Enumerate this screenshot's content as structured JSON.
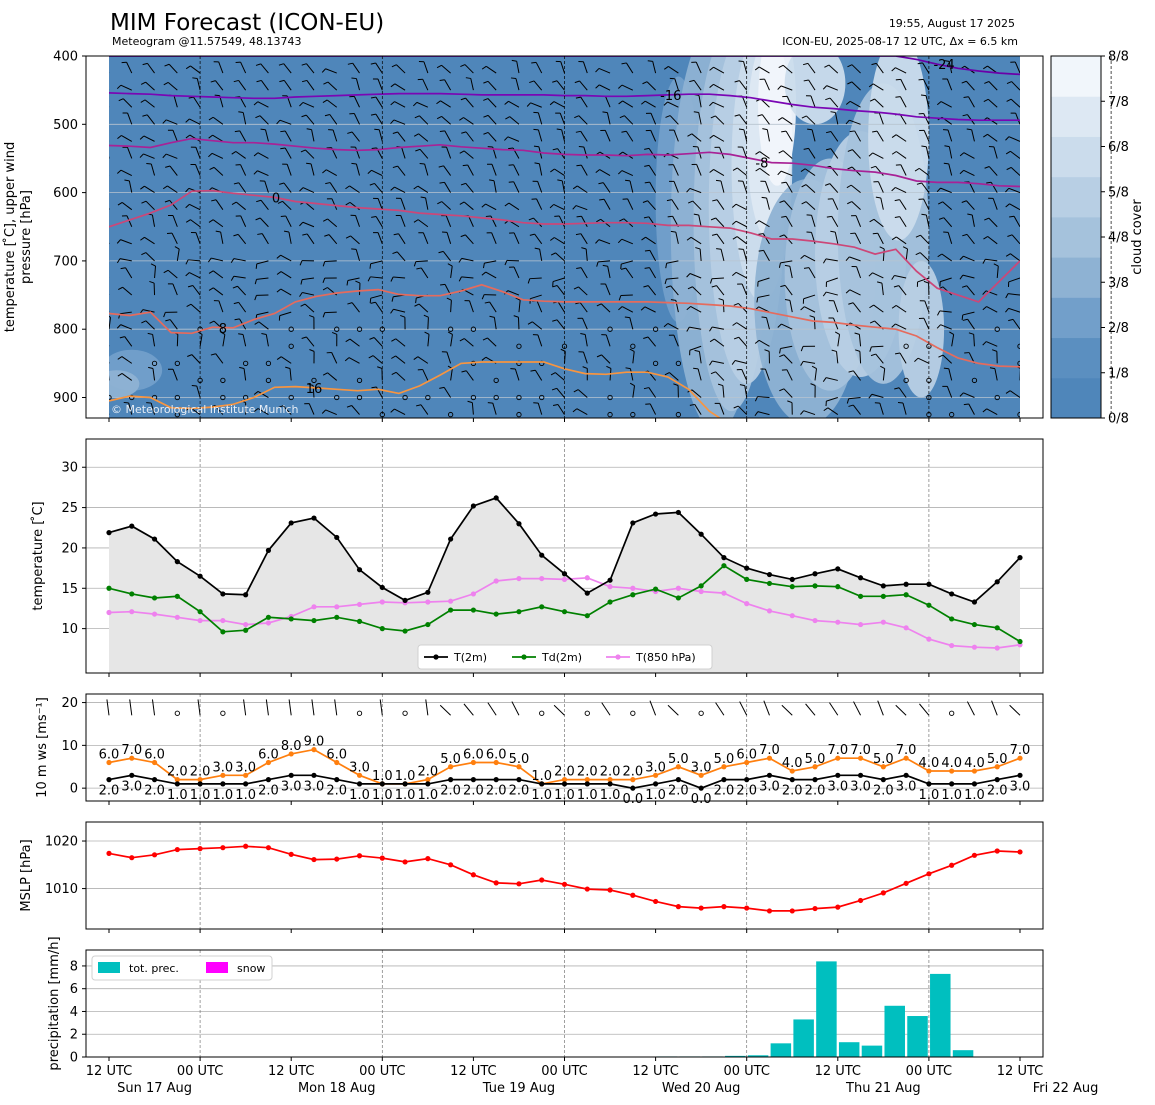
{
  "header": {
    "title": "MIM Forecast (ICON-EU)",
    "subtitle": "Meteogram @11.57549, 48.13743",
    "right_line1": "19:55, August 17 2025",
    "right_line2": "ICON-EU, 2025-08-17 12 UTC, Δx = 6.5 km",
    "copyright": "© Meteorological Institute Munich"
  },
  "time_axis": {
    "tick_labels": [
      "12 UTC",
      "00 UTC",
      "12 UTC",
      "00 UTC",
      "12 UTC",
      "00 UTC",
      "12 UTC",
      "00 UTC",
      "12 UTC",
      "00 UTC",
      "12 UTC"
    ],
    "day_labels": [
      "Sun 17 Aug",
      "Mon 18 Aug",
      "Tue 19 Aug",
      "Wed 20 Aug",
      "Thu 21 Aug",
      "Fri 22 Aug"
    ],
    "day_label_positions_h": [
      0,
      24,
      48,
      72,
      96,
      120
    ],
    "step_hours": 6,
    "hours_range": [
      0,
      120
    ]
  },
  "chart_data": [
    {
      "type": "heatmap",
      "name_panel": "upper_air",
      "ylabel": "temperature [$^\\circ$C], upper wind\npressure [hPa]",
      "ylabel_line1": "temperature [ ̊C], upper wind",
      "ylabel_line2": "pressure [hPa]",
      "ylim": [
        930,
        400
      ],
      "yticks": [
        400,
        500,
        600,
        700,
        800,
        900
      ],
      "colorbar_label": "cloud cover",
      "colorbar_ticks": [
        "0/8",
        "1/8",
        "2/8",
        "3/8",
        "4/8",
        "5/8",
        "6/8",
        "7/8",
        "8/8"
      ],
      "colorbar_colors": [
        "#4f86ba",
        "#5b8fc0",
        "#729fca",
        "#8eb2d3",
        "#a5c2dc",
        "#b8cfe4",
        "#cbdcec",
        "#dde8f3",
        "#f1f6fb"
      ],
      "isotherms": [
        {
          "label": "-24",
          "color": "#6a00a8",
          "pressures": [
            400,
            400,
            400,
            400,
            400,
            400,
            400,
            400,
            400,
            400,
            400,
            400,
            400,
            400,
            400,
            400,
            400,
            400,
            400,
            400,
            400,
            400,
            400,
            400,
            400,
            400,
            400,
            400,
            400,
            400,
            400,
            400,
            400,
            400,
            400,
            400,
            400,
            400,
            400,
            405,
            412,
            418,
            422,
            425,
            427
          ]
        },
        {
          "label": "-16",
          "color": "#7a06b4",
          "pressures": [
            454,
            455,
            456,
            458,
            459,
            460,
            461,
            462,
            462,
            460,
            459,
            458,
            457,
            456,
            455,
            455,
            455,
            456,
            457,
            457,
            457,
            457,
            458,
            458,
            459,
            459,
            458,
            457,
            456,
            456,
            458,
            461,
            466,
            471,
            475,
            477,
            480,
            482,
            485,
            489,
            491,
            493,
            494,
            494,
            494
          ]
        },
        {
          "label": "-8",
          "color": "#a82296",
          "pressures": [
            531,
            532,
            534,
            527,
            521,
            524,
            527,
            527,
            529,
            532,
            535,
            537,
            538,
            537,
            534,
            532,
            530,
            533,
            535,
            537,
            538,
            542,
            544,
            545,
            545,
            546,
            544,
            545,
            543,
            541,
            544,
            550,
            556,
            557,
            560,
            565,
            568,
            570,
            575,
            583,
            585,
            585,
            587,
            590,
            591
          ]
        },
        {
          "label": "0",
          "color": "#cc4778",
          "pressures": [
            650,
            640,
            630,
            618,
            598,
            597,
            601,
            604,
            607,
            613,
            616,
            619,
            622,
            624,
            626,
            630,
            632,
            634,
            637,
            640,
            644,
            646,
            646,
            645,
            644,
            644,
            645,
            648,
            648,
            650,
            652,
            659,
            668,
            668,
            671,
            675,
            680,
            690,
            683,
            715,
            740,
            750,
            760,
            730,
            700
          ]
        },
        {
          "label": "8",
          "color": "#e56b5d",
          "pressures": [
            777,
            780,
            775,
            805,
            806,
            797,
            798,
            786,
            777,
            760,
            752,
            747,
            744,
            742,
            749,
            751,
            751,
            744,
            735,
            745,
            757,
            759,
            760,
            760,
            760,
            760,
            760,
            761,
            762,
            764,
            766,
            770,
            776,
            782,
            788,
            790,
            794,
            797,
            800,
            810,
            827,
            842,
            850,
            854,
            855
          ]
        },
        {
          "label": "16",
          "color": "#f89540",
          "pressures": [
            905,
            898,
            900,
            915,
            916,
            914,
            910,
            900,
            885,
            884,
            886,
            888,
            890,
            888,
            894,
            883,
            867,
            850,
            848,
            848,
            848,
            848,
            858,
            865,
            866,
            863,
            863,
            870,
            888,
            920,
            940,
            950,
            955,
            960,
            970,
            980,
            990,
            1000,
            1000,
            1000,
            1000,
            1000,
            1000,
            1000,
            1000
          ]
        }
      ]
    },
    {
      "type": "line",
      "name_panel": "surface_temperature",
      "ylabel": "temperature [ ̊C]",
      "ylim": [
        4.5,
        33.5
      ],
      "yticks": [
        10,
        15,
        20,
        25,
        30
      ],
      "legend_location": "bottom-center",
      "x_hours": [
        0,
        3,
        6,
        9,
        12,
        15,
        18,
        21,
        24,
        27,
        30,
        33,
        36,
        39,
        42,
        45,
        48,
        51,
        54,
        57,
        60,
        63,
        66,
        69,
        72,
        75,
        78,
        81,
        84,
        87,
        90,
        93,
        96,
        99,
        102,
        105,
        108,
        111,
        114,
        117,
        120
      ],
      "series": [
        {
          "name": "T(2m)",
          "color": "#000000",
          "values": [
            21.9,
            22.7,
            21.1,
            18.3,
            16.5,
            14.3,
            14.2,
            19.7,
            23.1,
            23.7,
            21.3,
            17.3,
            15.1,
            13.5,
            14.5,
            21.1,
            25.2,
            26.2,
            23.0,
            19.1,
            16.8,
            14.4,
            16.0,
            23.1,
            24.2,
            24.4,
            21.7,
            18.8,
            17.5,
            16.7,
            16.1,
            16.8,
            17.4,
            16.3,
            15.3,
            15.5,
            15.5,
            14.3,
            13.3,
            15.8,
            18.8
          ]
        },
        {
          "name": "Td(2m)",
          "color": "#008000",
          "values": [
            15.0,
            14.3,
            13.8,
            14.0,
            12.1,
            9.6,
            9.8,
            11.4,
            11.2,
            11.0,
            11.4,
            10.9,
            10.0,
            9.7,
            10.5,
            12.3,
            12.3,
            11.8,
            12.1,
            12.7,
            12.1,
            11.6,
            13.3,
            14.2,
            14.9,
            13.8,
            15.3,
            17.8,
            16.1,
            15.6,
            15.2,
            15.3,
            15.2,
            14.0,
            14.0,
            14.2,
            12.9,
            11.2,
            10.5,
            10.1,
            8.4
          ]
        },
        {
          "name": "T(850 hPa)",
          "color": "#ee82ee",
          "values": [
            12.0,
            12.1,
            11.8,
            11.4,
            11.0,
            11.0,
            10.5,
            10.7,
            11.5,
            12.7,
            12.7,
            13.0,
            13.3,
            13.2,
            13.3,
            13.4,
            14.3,
            15.9,
            16.2,
            16.2,
            16.1,
            16.3,
            15.2,
            15.0,
            14.6,
            15.0,
            14.6,
            14.4,
            13.1,
            12.2,
            11.6,
            11.0,
            10.8,
            10.5,
            10.8,
            10.1,
            8.7,
            7.9,
            7.7,
            7.6,
            8.0
          ]
        }
      ]
    },
    {
      "type": "line",
      "name_panel": "wind_10m",
      "ylabel": "10 m ws [ms⁻¹]",
      "ylim": [
        -3,
        22
      ],
      "yticks": [
        0,
        10,
        20
      ],
      "x_hours": [
        0,
        3,
        6,
        9,
        12,
        15,
        18,
        21,
        24,
        27,
        30,
        33,
        36,
        39,
        42,
        45,
        48,
        51,
        54,
        57,
        60,
        63,
        66,
        69,
        72,
        75,
        78,
        81,
        84,
        87,
        90,
        93,
        96,
        99,
        102,
        105,
        108,
        111,
        114,
        117,
        120
      ],
      "series": [
        {
          "name": "",
          "color": "#000000",
          "values": [
            2.0,
            3.0,
            2.0,
            1.0,
            1.0,
            1.0,
            1.0,
            2.0,
            3.0,
            3.0,
            2.0,
            1.0,
            1.0,
            1.0,
            1.0,
            2.0,
            2.0,
            2.0,
            2.0,
            1.0,
            1.0,
            1.0,
            1.0,
            0.0,
            1.0,
            2.0,
            0.0,
            2.0,
            2.0,
            3.0,
            2.0,
            2.0,
            3.0,
            3.0,
            2.0,
            3.0,
            1.0,
            1.0,
            1.0,
            2.0,
            3.0
          ]
        },
        {
          "name": "",
          "color": "#ff7f0e",
          "values": [
            6.0,
            7.0,
            6.0,
            2.0,
            2.0,
            3.0,
            3.0,
            6.0,
            8.0,
            9.0,
            6.0,
            3.0,
            1.0,
            1.0,
            2.0,
            5.0,
            6.0,
            6.0,
            5.0,
            1.0,
            2.0,
            2.0,
            2.0,
            2.0,
            3.0,
            5.0,
            3.0,
            5.0,
            6.0,
            7.0,
            4.0,
            5.0,
            7.0,
            7.0,
            5.0,
            7.0,
            4.0,
            4.0,
            4.0,
            5.0,
            7.0
          ]
        }
      ],
      "gust_labels": [
        "6.0",
        "7.0",
        "6.0",
        "2.0",
        "2.0",
        "3.0",
        "3.0",
        "6.0",
        "8.0",
        "9.0",
        "6.0",
        "3.0",
        "1.0",
        "1.0",
        "2.0",
        "5.0",
        "6.0",
        "6.0",
        "5.0",
        "1.0",
        "2.0",
        "2.0",
        "2.0",
        "2.0",
        "3.0",
        "5.0",
        "3.0",
        "5.0",
        "6.0",
        "7.0",
        "4.0",
        "5.0",
        "7.0",
        "7.0",
        "5.0",
        "7.0",
        "4.0",
        "4.0",
        "4.0",
        "5.0",
        "7.0"
      ],
      "speed_labels": [
        "2.0",
        "3.0",
        "2.0",
        "1.0",
        "1.0",
        "1.0",
        "1.0",
        "2.0",
        "3.0",
        "3.0",
        "2.0",
        "1.0",
        "1.0",
        "1.0",
        "1.0",
        "2.0",
        "2.0",
        "2.0",
        "2.0",
        "1.0",
        "1.0",
        "1.0",
        "1.0",
        "0.0",
        "1.0",
        "2.0",
        "0.0",
        "2.0",
        "2.0",
        "3.0",
        "2.0",
        "2.0",
        "3.0",
        "3.0",
        "2.0",
        "3.0",
        "1.0",
        "1.0",
        "1.0",
        "2.0",
        "3.0"
      ]
    },
    {
      "type": "line",
      "name_panel": "mslp",
      "ylabel": "MSLP [hPa]",
      "ylim": [
        1001.5,
        1024.0
      ],
      "yticks": [
        1010,
        1020
      ],
      "x_hours": [
        0,
        3,
        6,
        9,
        12,
        15,
        18,
        21,
        24,
        27,
        30,
        33,
        36,
        39,
        42,
        45,
        48,
        51,
        54,
        57,
        60,
        63,
        66,
        69,
        72,
        75,
        78,
        81,
        84,
        87,
        90,
        93,
        96,
        99,
        102,
        105,
        108,
        111,
        114,
        117,
        120
      ],
      "series": [
        {
          "name": "",
          "color": "#ff0000",
          "values": [
            1017.4,
            1016.5,
            1017.1,
            1018.2,
            1018.4,
            1018.6,
            1018.9,
            1018.6,
            1017.2,
            1016.1,
            1016.2,
            1016.9,
            1016.4,
            1015.6,
            1016.3,
            1015.0,
            1012.9,
            1011.2,
            1011.0,
            1011.8,
            1010.9,
            1009.9,
            1009.7,
            1008.6,
            1007.3,
            1006.2,
            1005.9,
            1006.2,
            1005.9,
            1005.3,
            1005.3,
            1005.8,
            1006.1,
            1007.5,
            1009.1,
            1011.1,
            1013.1,
            1014.9,
            1017.0,
            1017.9,
            1017.7
          ]
        }
      ]
    },
    {
      "type": "bar",
      "name_panel": "precipitation",
      "ylabel": "precipitation [mm/h]",
      "ylim": [
        0,
        9.4
      ],
      "yticks": [
        0,
        2,
        4,
        6,
        8
      ],
      "legend_location": "top-left",
      "x_hours": [
        0,
        3,
        6,
        9,
        12,
        15,
        18,
        21,
        24,
        27,
        30,
        33,
        36,
        39,
        42,
        45,
        48,
        51,
        54,
        57,
        60,
        63,
        66,
        69,
        72,
        75,
        78,
        81,
        84,
        87,
        90,
        93,
        96,
        99,
        102,
        105,
        108,
        111,
        114,
        117,
        120
      ],
      "series": [
        {
          "name": "tot. prec.",
          "color": "#00bfbf",
          "values": [
            0,
            0,
            0,
            0,
            0,
            0,
            0,
            0,
            0,
            0,
            0,
            0,
            0,
            0,
            0,
            0,
            0,
            0,
            0,
            0,
            0,
            0,
            0,
            0,
            0.05,
            0.05,
            0.05,
            0.1,
            0.15,
            1.2,
            3.3,
            8.4,
            1.3,
            1.0,
            4.5,
            3.6,
            7.3,
            0.6,
            0,
            0,
            0
          ]
        },
        {
          "name": "snow",
          "color": "#ff00ff",
          "values": [
            0,
            0,
            0,
            0,
            0,
            0,
            0,
            0,
            0,
            0,
            0,
            0,
            0,
            0,
            0,
            0,
            0,
            0,
            0,
            0,
            0,
            0,
            0,
            0,
            0,
            0,
            0,
            0,
            0,
            0,
            0,
            0,
            0,
            0,
            0,
            0,
            0,
            0,
            0,
            0,
            0
          ]
        }
      ]
    }
  ]
}
